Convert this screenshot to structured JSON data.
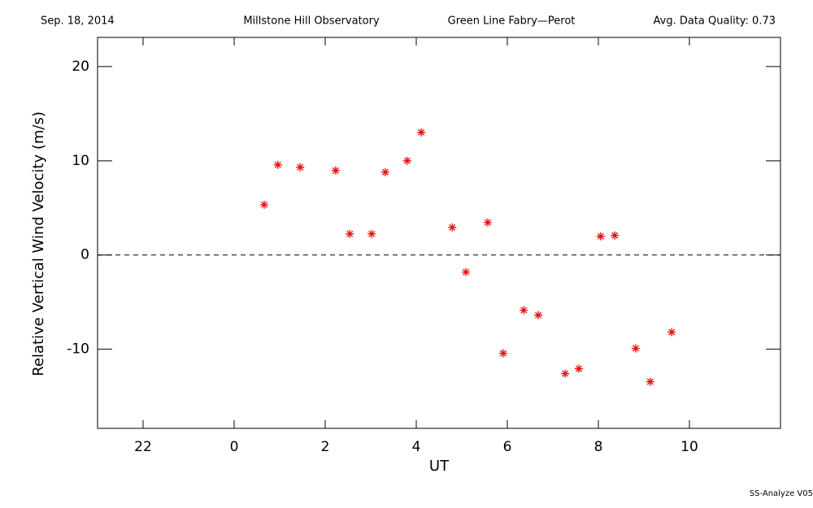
{
  "chart_data": {
    "type": "scatter",
    "header": [
      "Sep. 18, 2014",
      "Millstone Hill Observatory",
      "Green Line Fabry—Perot",
      "Avg. Data Quality: 0.73"
    ],
    "xlabel": "UT",
    "ylabel": "Relative Vertical Wind Velocity (m/s)",
    "footer": "SS-Analyze V05",
    "xlim": [
      -3,
      12
    ],
    "ylim": [
      -18.4,
      23.1
    ],
    "xticks": [
      {
        "value": -2,
        "label": "22"
      },
      0,
      2,
      4,
      6,
      8,
      10
    ],
    "yticks": [
      -10,
      0,
      10,
      20
    ],
    "reference_line": 0,
    "series": [
      {
        "color": "#ff0000",
        "x": [
          0.66,
          0.96,
          1.45,
          2.23,
          2.54,
          3.02,
          3.32,
          3.8,
          4.11,
          4.79,
          5.09,
          5.57,
          5.91,
          6.36,
          6.68,
          7.27,
          7.57,
          8.05,
          8.36,
          8.82,
          9.14,
          9.61
        ],
        "values": [
          5.34,
          9.57,
          9.31,
          8.97,
          2.24,
          2.24,
          8.79,
          10.0,
          13.02,
          2.93,
          -1.81,
          3.45,
          -10.43,
          -5.86,
          -6.38,
          -12.59,
          -12.07,
          1.98,
          2.07,
          -9.91,
          -13.45,
          -8.19
        ]
      }
    ]
  }
}
